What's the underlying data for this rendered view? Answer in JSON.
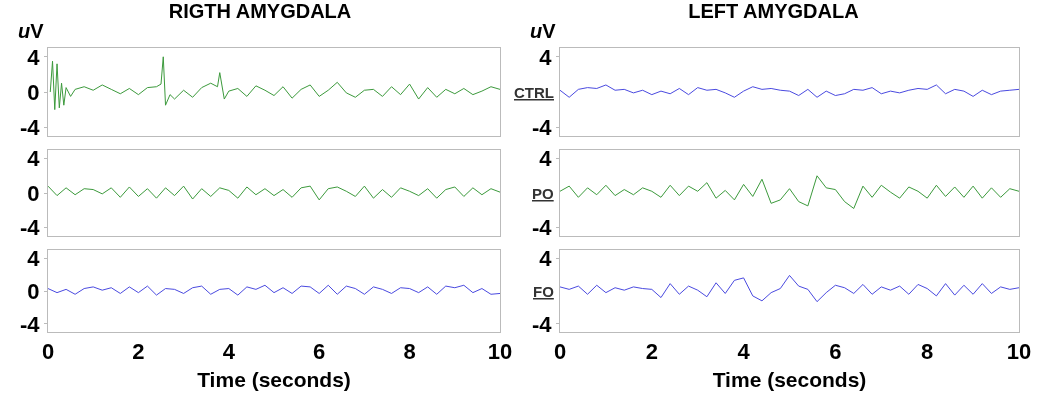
{
  "chart_data": [
    {
      "type": "line",
      "title": "RIGTH AMYGDALA",
      "ylabel": "uV",
      "xlim": [
        0,
        10
      ],
      "xticks": [
        0,
        2,
        4,
        6,
        8,
        10
      ],
      "ylim": [
        -5,
        5
      ],
      "yticks": [
        4,
        0,
        -4
      ],
      "tick_labels": "y",
      "line_style": "solid",
      "series": [
        {
          "color": "#3c9a3c",
          "x": [
            0.05,
            0.1,
            0.15,
            0.2,
            0.25,
            0.3,
            0.35,
            0.4,
            0.5,
            0.6,
            0.8,
            1.0,
            1.2,
            1.4,
            1.6,
            1.8,
            2.0,
            2.2,
            2.4,
            2.5,
            2.55,
            2.6,
            2.7,
            2.8,
            3.0,
            3.2,
            3.4,
            3.6,
            3.75,
            3.8,
            3.9,
            4.0,
            4.2,
            4.4,
            4.6,
            4.8,
            5.0,
            5.2,
            5.4,
            5.6,
            5.8,
            6.0,
            6.2,
            6.4,
            6.6,
            6.8,
            7.0,
            7.2,
            7.4,
            7.6,
            7.8,
            8.0,
            8.2,
            8.4,
            8.6,
            8.8,
            9.0,
            9.2,
            9.4,
            9.6,
            9.8,
            10.0
          ],
          "values": [
            0,
            3.5,
            -2,
            3.2,
            -1.8,
            1,
            -1.5,
            0.5,
            -0.5,
            0.3,
            0.6,
            0.2,
            0.8,
            0.3,
            -0.2,
            0.4,
            -0.3,
            0.5,
            0.6,
            0.9,
            4,
            -1.5,
            -0.3,
            -0.8,
            0.2,
            -0.6,
            0.5,
            1,
            0.6,
            2.2,
            -0.8,
            0.1,
            0.4,
            -0.5,
            0.7,
            0.2,
            -0.4,
            0.6,
            -0.7,
            0.3,
            0.8,
            -0.5,
            0.2,
            1.1,
            -0.1,
            -0.6,
            0.2,
            0.3,
            -0.5,
            0.6,
            -0.3,
            0.9,
            -0.8,
            0.5,
            -0.6,
            0.3,
            -0.2,
            0.4,
            -0.3,
            0.1,
            0.6,
            0.3
          ]
        }
      ]
    },
    {
      "type": "line",
      "title": "LEFT AMYGDALA",
      "ylabel": "uV",
      "annotations": [
        "CTRL"
      ],
      "x": [
        0,
        0.2,
        0.4,
        0.6,
        0.8,
        1,
        1.2,
        1.4,
        1.6,
        1.8,
        2,
        2.2,
        2.4,
        2.6,
        2.8,
        3,
        3.2,
        3.4,
        3.6,
        3.8,
        4,
        4.2,
        4.4,
        4.6,
        4.8,
        5,
        5.2,
        5.4,
        5.6,
        5.8,
        6,
        6.2,
        6.4,
        6.6,
        6.8,
        7,
        7.2,
        7.4,
        7.6,
        7.8,
        8,
        8.2,
        8.4,
        8.6,
        8.8,
        9,
        9.2,
        9.4,
        9.6,
        9.8,
        10
      ],
      "xlim": [
        0,
        10
      ],
      "xticks": [
        0,
        2,
        4,
        6,
        8,
        10
      ],
      "ylim": [
        -5,
        5
      ],
      "yticks": [
        4,
        -4
      ],
      "tick_labels": "y",
      "line_style": "solid",
      "series": [
        {
          "color": "#4a4ae0",
          "values": [
            0.2,
            -0.6,
            0.3,
            0.5,
            0.4,
            0.8,
            0.2,
            0.3,
            -0.1,
            0.2,
            -0.3,
            0.1,
            -0.2,
            0.4,
            -0.3,
            0.5,
            0.2,
            0.3,
            -0.1,
            -0.6,
            0.1,
            0.6,
            0.3,
            0.4,
            0.2,
            0.1,
            -0.4,
            0.3,
            -0.6,
            0.1,
            -0.4,
            -0.2,
            0.3,
            0.2,
            0.5,
            -0.2,
            0.1,
            -0.1,
            0.2,
            0.4,
            0.3,
            0.8,
            -0.2,
            0.3,
            0.1,
            -0.5,
            0.2,
            -0.3,
            0.1,
            0.2,
            0.3
          ]
        }
      ]
    },
    {
      "type": "line",
      "x": [
        0,
        0.2,
        0.4,
        0.6,
        0.8,
        1,
        1.2,
        1.4,
        1.6,
        1.8,
        2,
        2.2,
        2.4,
        2.6,
        2.8,
        3,
        3.2,
        3.4,
        3.6,
        3.8,
        4,
        4.2,
        4.4,
        4.6,
        4.8,
        5,
        5.2,
        5.4,
        5.6,
        5.8,
        6,
        6.2,
        6.4,
        6.6,
        6.8,
        7,
        7.2,
        7.4,
        7.6,
        7.8,
        8,
        8.2,
        8.4,
        8.6,
        8.8,
        9,
        9.2,
        9.4,
        9.6,
        9.8,
        10
      ],
      "xlim": [
        0,
        10
      ],
      "xticks": [
        0,
        2,
        4,
        6,
        8,
        10
      ],
      "ylim": [
        -5,
        5
      ],
      "yticks": [
        4,
        0,
        -4
      ],
      "tick_labels": "y",
      "line_style": "solid",
      "series": [
        {
          "color": "#3c9a3c",
          "values": [
            0.8,
            -0.3,
            0.6,
            -0.2,
            0.5,
            0.4,
            -0.1,
            0.6,
            -0.5,
            0.7,
            -0.4,
            0.5,
            -0.6,
            0.6,
            -0.3,
            0.8,
            -0.7,
            0.5,
            -0.4,
            0.6,
            0.3,
            -0.6,
            0.7,
            -0.2,
            0.5,
            -0.3,
            0.4,
            -0.5,
            0.6,
            0.8,
            -0.8,
            0.5,
            0.7,
            0.2,
            -0.4,
            0.8,
            -0.6,
            0.4,
            -0.5,
            0.6,
            0.2,
            -0.3,
            0.5,
            -0.6,
            0.4,
            0.7,
            -0.4,
            0.6,
            -0.2,
            0.5,
            0.1
          ]
        }
      ]
    },
    {
      "type": "line",
      "annotations": [
        "PO"
      ],
      "x": [
        0,
        0.2,
        0.4,
        0.6,
        0.8,
        1,
        1.2,
        1.4,
        1.6,
        1.8,
        2,
        2.2,
        2.4,
        2.6,
        2.8,
        3,
        3.2,
        3.4,
        3.6,
        3.8,
        4,
        4.2,
        4.4,
        4.6,
        4.8,
        5,
        5.2,
        5.4,
        5.6,
        5.8,
        6,
        6.2,
        6.4,
        6.6,
        6.8,
        7,
        7.2,
        7.4,
        7.6,
        7.8,
        8,
        8.2,
        8.4,
        8.6,
        8.8,
        9,
        9.2,
        9.4,
        9.6,
        9.8,
        10
      ],
      "xlim": [
        0,
        10
      ],
      "xticks": [
        0,
        2,
        4,
        6,
        8,
        10
      ],
      "ylim": [
        -5,
        5
      ],
      "yticks": [
        4,
        -4
      ],
      "tick_labels": "y",
      "line_style": "solid",
      "series": [
        {
          "color": "#3c9a3c",
          "values": [
            0.2,
            0.8,
            -0.5,
            0.6,
            -0.2,
            0.9,
            -0.3,
            0.4,
            -0.2,
            0.6,
            0.2,
            -0.5,
            0.9,
            -0.3,
            0.8,
            0.2,
            1.2,
            -0.6,
            0.3,
            -0.8,
            1.0,
            -0.4,
            1.6,
            -1.2,
            -0.8,
            0.5,
            -1.0,
            -1.5,
            2.0,
            0.6,
            0.4,
            -1.0,
            -1.8,
            0.8,
            -0.5,
            0.9,
            0.1,
            -0.6,
            0.7,
            0.2,
            -0.6,
            0.9,
            -0.4,
            0.7,
            -0.5,
            0.8,
            -0.6,
            0.6,
            -0.5,
            0.5,
            0.2
          ]
        }
      ]
    },
    {
      "type": "line",
      "xlabel": "Time (seconds)",
      "x": [
        0,
        0.2,
        0.4,
        0.6,
        0.8,
        1,
        1.2,
        1.4,
        1.6,
        1.8,
        2,
        2.2,
        2.4,
        2.6,
        2.8,
        3,
        3.2,
        3.4,
        3.6,
        3.8,
        4,
        4.2,
        4.4,
        4.6,
        4.8,
        5,
        5.2,
        5.4,
        5.6,
        5.8,
        6,
        6.2,
        6.4,
        6.6,
        6.8,
        7,
        7.2,
        7.4,
        7.6,
        7.8,
        8,
        8.2,
        8.4,
        8.6,
        8.8,
        9,
        9.2,
        9.4,
        9.6,
        9.8,
        10
      ],
      "xlim": [
        0,
        10
      ],
      "xticks": [
        0,
        2,
        4,
        6,
        8,
        10
      ],
      "ylim": [
        -5,
        5
      ],
      "yticks": [
        4,
        0,
        -4
      ],
      "line_style": "solid",
      "series": [
        {
          "color": "#4a4ae0",
          "values": [
            0.3,
            -0.2,
            0.2,
            -0.4,
            0.3,
            0.5,
            0.1,
            0.4,
            -0.3,
            0.5,
            -0.2,
            0.6,
            -0.5,
            0.3,
            0.2,
            -0.3,
            0.4,
            0.6,
            -0.4,
            0.2,
            0.3,
            -0.5,
            0.5,
            0.2,
            0.7,
            -0.2,
            0.4,
            -0.3,
            0.6,
            0.5,
            -0.3,
            0.7,
            -0.4,
            0.6,
            0.3,
            -0.4,
            0.5,
            0.2,
            -0.3,
            0.4,
            0.3,
            -0.2,
            0.5,
            -0.4,
            0.6,
            0.4,
            0.7,
            -0.2,
            0.3,
            -0.4,
            -0.3
          ]
        }
      ]
    },
    {
      "type": "line",
      "xlabel": "Time (seconds)",
      "annotations": [
        "FO"
      ],
      "x": [
        0,
        0.2,
        0.4,
        0.6,
        0.8,
        1,
        1.2,
        1.4,
        1.6,
        1.8,
        2,
        2.2,
        2.4,
        2.6,
        2.8,
        3,
        3.2,
        3.4,
        3.6,
        3.8,
        4,
        4.2,
        4.4,
        4.6,
        4.8,
        5,
        5.2,
        5.4,
        5.6,
        5.8,
        6,
        6.2,
        6.4,
        6.6,
        6.8,
        7,
        7.2,
        7.4,
        7.6,
        7.8,
        8,
        8.2,
        8.4,
        8.6,
        8.8,
        9,
        9.2,
        9.4,
        9.6,
        9.8,
        10
      ],
      "xlim": [
        0,
        10
      ],
      "xticks": [
        0,
        2,
        4,
        6,
        8,
        10
      ],
      "ylim": [
        -5,
        5
      ],
      "yticks": [
        4,
        -4
      ],
      "line_style": "solid",
      "series": [
        {
          "color": "#4a4ae0",
          "values": [
            0.5,
            0.2,
            0.6,
            -0.4,
            0.7,
            -0.2,
            0.4,
            0.1,
            0.5,
            0.3,
            0.2,
            -0.8,
            0.9,
            -0.4,
            0.6,
            0.1,
            -0.7,
            1.0,
            -0.3,
            1.3,
            1.6,
            -0.6,
            -1.2,
            -0.2,
            0.3,
            1.9,
            0.6,
            0.2,
            -1.3,
            -0.2,
            0.7,
            0.4,
            -0.3,
            0.8,
            -0.4,
            0.5,
            0.1,
            0.6,
            -0.4,
            0.8,
            0.3,
            -0.6,
            0.9,
            -0.5,
            0.7,
            -0.4,
            0.9,
            -0.3,
            0.5,
            0.2,
            0.4
          ]
        }
      ]
    }
  ]
}
